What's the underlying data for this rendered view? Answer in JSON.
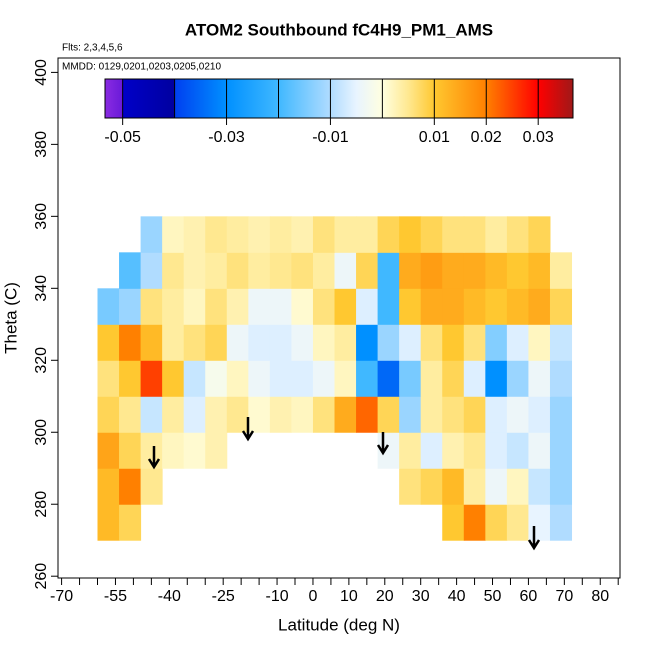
{
  "chart_data": {
    "type": "heatmap",
    "title": "ATOM2 Southbound fC4H9_PM1_AMS",
    "subtitle": "Flts: 2,3,4,5,6",
    "annotation": "MMDD: 0129,0201,0203,0205,0210",
    "xlabel": "Latitude (deg N)",
    "ylabel": "Theta (C)",
    "xlim": [
      -71,
      85.5
    ],
    "ylim": [
      259.5,
      404
    ],
    "xticks": [
      -70,
      -55,
      -40,
      -25,
      -10,
      0,
      10,
      20,
      30,
      40,
      50,
      60,
      70,
      80
    ],
    "minor_xticks": [
      -65,
      -60,
      -50,
      -45,
      -35,
      -30,
      -20,
      -15,
      -5,
      5,
      15,
      25,
      35,
      45,
      55,
      65,
      75,
      85
    ],
    "yticks": [
      260,
      280,
      300,
      320,
      340,
      360,
      380,
      400
    ],
    "x_edges": [
      -60,
      -54,
      -48,
      -42,
      -36,
      -30,
      -24,
      -18,
      -12,
      -6,
      0,
      6,
      12,
      18,
      24,
      30,
      36,
      42,
      48,
      54,
      60,
      66,
      72
    ],
    "y_edges": [
      270,
      280,
      290,
      300,
      310,
      320,
      330,
      340,
      350,
      360
    ],
    "z": [
      [
        0.012,
        0.008,
        null,
        null,
        null,
        null,
        null,
        null,
        null,
        null,
        null,
        null,
        null,
        null,
        null,
        null,
        0.01,
        0.02,
        0.008,
        0.005,
        -0.005,
        -0.01
      ],
      [
        0.012,
        0.02,
        0.005,
        null,
        null,
        null,
        null,
        null,
        null,
        null,
        null,
        null,
        null,
        null,
        0.006,
        0.008,
        0.012,
        0.004,
        -0.004,
        0.002,
        -0.008,
        -0.012
      ],
      [
        0.015,
        0.008,
        0.004,
        0.002,
        0.001,
        0.003,
        null,
        null,
        null,
        null,
        null,
        null,
        null,
        -0.004,
        0.004,
        -0.006,
        0.003,
        0.005,
        -0.006,
        -0.008,
        -0.004,
        -0.012
      ],
      [
        0.008,
        0.005,
        -0.008,
        0.004,
        -0.006,
        0.003,
        0.005,
        0.001,
        0.003,
        0.002,
        0.006,
        0.014,
        0.022,
        0.008,
        -0.012,
        0.004,
        0.006,
        0.008,
        -0.006,
        -0.004,
        -0.006,
        -0.012
      ],
      [
        0.006,
        0.01,
        0.025,
        0.01,
        -0.008,
        -0.002,
        0.002,
        -0.004,
        -0.006,
        -0.006,
        -0.004,
        0.002,
        -0.02,
        -0.035,
        -0.015,
        0.004,
        0.008,
        -0.006,
        -0.03,
        -0.012,
        -0.004,
        -0.01
      ],
      [
        0.01,
        0.02,
        0.012,
        0.004,
        0.006,
        0.008,
        -0.004,
        -0.006,
        -0.006,
        -0.004,
        0.002,
        0.004,
        -0.03,
        -0.012,
        -0.006,
        0.006,
        0.01,
        0.006,
        -0.014,
        -0.006,
        0.002,
        -0.008
      ],
      [
        -0.015,
        -0.012,
        0.006,
        0.004,
        0.002,
        0.006,
        0.003,
        -0.004,
        -0.004,
        0.001,
        0.006,
        0.01,
        -0.006,
        -0.02,
        0.01,
        0.014,
        0.014,
        0.012,
        0.01,
        0.012,
        0.014,
        0.008
      ],
      [
        null,
        -0.018,
        -0.01,
        0.005,
        0.003,
        0.004,
        0.006,
        0.004,
        0.005,
        0.006,
        0.004,
        -0.004,
        0.008,
        -0.02,
        0.014,
        0.016,
        0.014,
        0.014,
        0.012,
        0.01,
        0.012,
        0.004
      ],
      [
        null,
        null,
        -0.012,
        0.002,
        0.003,
        0.005,
        0.004,
        0.003,
        0.004,
        0.003,
        0.006,
        0.004,
        0.004,
        0.008,
        0.01,
        0.008,
        0.006,
        0.006,
        0.004,
        0.006,
        0.008,
        null
      ]
    ],
    "colorbar": {
      "lim": [
        -0.0534,
        0.0367
      ],
      "ticks": [
        -0.05,
        -0.03,
        -0.01,
        0.01,
        0.02,
        0.03
      ],
      "breaks": [
        -0.05,
        -0.04,
        -0.03,
        -0.02,
        -0.01,
        0,
        0.01,
        0.02,
        0.03
      ],
      "stops": [
        {
          "value": -0.0534,
          "color": "#8a2be2"
        },
        {
          "value": -0.0501,
          "color": "#6a1ad8"
        },
        {
          "value": -0.0499,
          "color": "#0000c8"
        },
        {
          "value": -0.0401,
          "color": "#0000a0"
        },
        {
          "value": -0.0399,
          "color": "#0040f0"
        },
        {
          "value": -0.03,
          "color": "#0090ff"
        },
        {
          "value": -0.02,
          "color": "#40b8ff"
        },
        {
          "value": -0.01,
          "color": "#b0dcff"
        },
        {
          "value": -0.005,
          "color": "#e8f4ff"
        },
        {
          "value": 0,
          "color": "#ffffe0"
        },
        {
          "value": 0.005,
          "color": "#ffe890"
        },
        {
          "value": 0.01,
          "color": "#ffc830"
        },
        {
          "value": 0.02,
          "color": "#ff8000"
        },
        {
          "value": 0.03,
          "color": "#ff0000"
        },
        {
          "value": 0.0367,
          "color": "#a01818"
        }
      ]
    }
  }
}
